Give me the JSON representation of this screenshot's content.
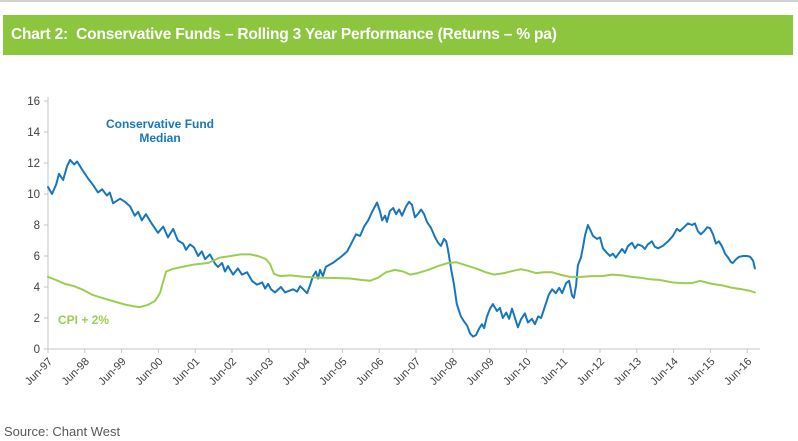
{
  "header": {
    "title": "Chart 2:  Conservative Funds – Rolling 3 Year Performance (Returns – % pa)",
    "bg_color": "#8CC63F",
    "text_color": "#FFFFFF"
  },
  "source": {
    "label": "Source: Chant West"
  },
  "chart_data": {
    "type": "line",
    "title": "Chart 2: Conservative Funds – Rolling 3 Year Performance (Returns – % pa)",
    "xlabel": "",
    "ylabel": "",
    "ylim": [
      0,
      16
    ],
    "y_ticks": [
      0,
      2,
      4,
      6,
      8,
      10,
      12,
      14,
      16
    ],
    "x_tick_labels": [
      "Jun-97",
      "Jun-98",
      "Jun-99",
      "Jun-00",
      "Jun-01",
      "Jun-02",
      "Jun-03",
      "Jun-04",
      "Jun-05",
      "Jun-06",
      "Jun-07",
      "Jun-08",
      "Jun-09",
      "Jun-10",
      "Jun-11",
      "Jun-12",
      "Jun-13",
      "Jun-14",
      "Jun-15",
      "Jun-16"
    ],
    "grid": false,
    "legend_position": "inline-annotations",
    "axis_color": "#C6C6C6",
    "tick_label_color": "#404040",
    "series": [
      {
        "name": "Conservative Fund Median",
        "color": "#1777BE",
        "x_unit": "years_after_Jun_1997",
        "points": [
          [
            0.0,
            10.45
          ],
          [
            0.11,
            10.0
          ],
          [
            0.22,
            10.6
          ],
          [
            0.3,
            11.3
          ],
          [
            0.41,
            10.9
          ],
          [
            0.52,
            11.8
          ],
          [
            0.6,
            12.2
          ],
          [
            0.71,
            11.9
          ],
          [
            0.79,
            12.1
          ],
          [
            0.92,
            11.6
          ],
          [
            1.09,
            11.0
          ],
          [
            1.22,
            10.6
          ],
          [
            1.36,
            10.1
          ],
          [
            1.47,
            10.3
          ],
          [
            1.6,
            9.9
          ],
          [
            1.68,
            10.1
          ],
          [
            1.77,
            9.4
          ],
          [
            1.96,
            9.7
          ],
          [
            2.09,
            9.5
          ],
          [
            2.23,
            9.2
          ],
          [
            2.36,
            8.6
          ],
          [
            2.45,
            8.85
          ],
          [
            2.55,
            8.3
          ],
          [
            2.66,
            8.7
          ],
          [
            2.83,
            8.05
          ],
          [
            2.99,
            7.5
          ],
          [
            3.13,
            7.9
          ],
          [
            3.26,
            7.2
          ],
          [
            3.4,
            7.75
          ],
          [
            3.53,
            7.0
          ],
          [
            3.67,
            6.8
          ],
          [
            3.75,
            6.4
          ],
          [
            3.86,
            6.75
          ],
          [
            3.97,
            6.55
          ],
          [
            4.08,
            6.0
          ],
          [
            4.18,
            6.3
          ],
          [
            4.27,
            5.8
          ],
          [
            4.4,
            6.1
          ],
          [
            4.54,
            5.5
          ],
          [
            4.62,
            5.3
          ],
          [
            4.73,
            5.55
          ],
          [
            4.81,
            5.0
          ],
          [
            4.89,
            5.35
          ],
          [
            5.03,
            4.8
          ],
          [
            5.16,
            5.2
          ],
          [
            5.27,
            4.8
          ],
          [
            5.41,
            4.95
          ],
          [
            5.54,
            4.4
          ],
          [
            5.68,
            4.15
          ],
          [
            5.82,
            4.3
          ],
          [
            5.9,
            3.9
          ],
          [
            5.98,
            4.2
          ],
          [
            6.06,
            3.85
          ],
          [
            6.17,
            3.65
          ],
          [
            6.33,
            4.0
          ],
          [
            6.44,
            3.65
          ],
          [
            6.66,
            3.85
          ],
          [
            6.77,
            3.7
          ],
          [
            6.85,
            4.05
          ],
          [
            7.04,
            3.6
          ],
          [
            7.12,
            4.1
          ],
          [
            7.2,
            4.7
          ],
          [
            7.28,
            5.0
          ],
          [
            7.34,
            4.55
          ],
          [
            7.39,
            5.1
          ],
          [
            7.47,
            4.7
          ],
          [
            7.55,
            5.3
          ],
          [
            7.77,
            5.6
          ],
          [
            7.99,
            6.0
          ],
          [
            8.13,
            6.3
          ],
          [
            8.26,
            6.9
          ],
          [
            8.37,
            7.4
          ],
          [
            8.48,
            7.3
          ],
          [
            8.59,
            7.9
          ],
          [
            8.7,
            8.3
          ],
          [
            8.8,
            8.8
          ],
          [
            8.94,
            9.45
          ],
          [
            9.02,
            8.9
          ],
          [
            9.08,
            8.3
          ],
          [
            9.16,
            8.6
          ],
          [
            9.21,
            8.2
          ],
          [
            9.29,
            8.9
          ],
          [
            9.38,
            9.1
          ],
          [
            9.46,
            8.7
          ],
          [
            9.54,
            9.0
          ],
          [
            9.62,
            8.6
          ],
          [
            9.73,
            9.2
          ],
          [
            9.81,
            9.5
          ],
          [
            9.89,
            9.3
          ],
          [
            9.97,
            8.5
          ],
          [
            10.05,
            8.7
          ],
          [
            10.14,
            9.0
          ],
          [
            10.22,
            8.7
          ],
          [
            10.3,
            8.2
          ],
          [
            10.41,
            7.8
          ],
          [
            10.52,
            7.2
          ],
          [
            10.6,
            6.85
          ],
          [
            10.68,
            6.65
          ],
          [
            10.76,
            7.1
          ],
          [
            10.82,
            6.95
          ],
          [
            10.87,
            6.4
          ],
          [
            10.95,
            5.2
          ],
          [
            11.03,
            4.2
          ],
          [
            11.11,
            2.9
          ],
          [
            11.22,
            2.1
          ],
          [
            11.3,
            1.8
          ],
          [
            11.39,
            1.5
          ],
          [
            11.47,
            1.0
          ],
          [
            11.55,
            0.8
          ],
          [
            11.63,
            0.9
          ],
          [
            11.71,
            1.3
          ],
          [
            11.79,
            1.6
          ],
          [
            11.85,
            1.35
          ],
          [
            11.93,
            2.1
          ],
          [
            12.01,
            2.6
          ],
          [
            12.09,
            2.9
          ],
          [
            12.2,
            2.45
          ],
          [
            12.28,
            2.65
          ],
          [
            12.36,
            2.0
          ],
          [
            12.45,
            2.35
          ],
          [
            12.53,
            1.95
          ],
          [
            12.61,
            2.6
          ],
          [
            12.69,
            2.0
          ],
          [
            12.77,
            1.4
          ],
          [
            12.85,
            1.9
          ],
          [
            12.96,
            2.3
          ],
          [
            13.04,
            1.7
          ],
          [
            13.15,
            1.95
          ],
          [
            13.23,
            1.6
          ],
          [
            13.32,
            2.1
          ],
          [
            13.4,
            2.0
          ],
          [
            13.51,
            2.8
          ],
          [
            13.61,
            3.5
          ],
          [
            13.7,
            3.85
          ],
          [
            13.8,
            3.6
          ],
          [
            13.89,
            3.95
          ],
          [
            13.97,
            3.6
          ],
          [
            14.08,
            4.25
          ],
          [
            14.16,
            4.4
          ],
          [
            14.24,
            3.45
          ],
          [
            14.29,
            3.3
          ],
          [
            14.35,
            4.1
          ],
          [
            14.4,
            5.4
          ],
          [
            14.48,
            5.9
          ],
          [
            14.54,
            6.6
          ],
          [
            14.59,
            7.3
          ],
          [
            14.67,
            8.0
          ],
          [
            14.73,
            7.7
          ],
          [
            14.81,
            7.3
          ],
          [
            14.92,
            7.1
          ],
          [
            15.0,
            7.2
          ],
          [
            15.08,
            6.5
          ],
          [
            15.19,
            6.2
          ],
          [
            15.27,
            6.0
          ],
          [
            15.35,
            6.15
          ],
          [
            15.43,
            5.9
          ],
          [
            15.52,
            6.2
          ],
          [
            15.6,
            6.45
          ],
          [
            15.68,
            6.2
          ],
          [
            15.76,
            6.65
          ],
          [
            15.87,
            6.85
          ],
          [
            15.95,
            6.5
          ],
          [
            16.03,
            6.75
          ],
          [
            16.14,
            6.65
          ],
          [
            16.22,
            6.45
          ],
          [
            16.3,
            6.75
          ],
          [
            16.41,
            6.95
          ],
          [
            16.49,
            6.6
          ],
          [
            16.58,
            6.5
          ],
          [
            16.71,
            6.65
          ],
          [
            16.85,
            6.95
          ],
          [
            16.98,
            7.3
          ],
          [
            17.09,
            7.75
          ],
          [
            17.17,
            7.6
          ],
          [
            17.28,
            7.85
          ],
          [
            17.39,
            8.1
          ],
          [
            17.5,
            8.0
          ],
          [
            17.58,
            8.1
          ],
          [
            17.66,
            7.6
          ],
          [
            17.74,
            7.4
          ],
          [
            17.83,
            7.6
          ],
          [
            17.91,
            7.85
          ],
          [
            17.99,
            7.8
          ],
          [
            18.07,
            7.4
          ],
          [
            18.15,
            6.8
          ],
          [
            18.23,
            6.95
          ],
          [
            18.32,
            6.6
          ],
          [
            18.4,
            6.15
          ],
          [
            18.48,
            5.9
          ],
          [
            18.56,
            5.6
          ],
          [
            18.61,
            5.55
          ],
          [
            18.7,
            5.8
          ],
          [
            18.78,
            5.95
          ],
          [
            18.89,
            6.0
          ],
          [
            19.0,
            6.0
          ],
          [
            19.08,
            5.95
          ],
          [
            19.16,
            5.7
          ],
          [
            19.21,
            5.2
          ]
        ]
      },
      {
        "name": "CPI + 2%",
        "color": "#9BCE4E",
        "x_unit": "years_after_Jun_1997",
        "points": [
          [
            0.0,
            4.65
          ],
          [
            0.22,
            4.45
          ],
          [
            0.46,
            4.2
          ],
          [
            0.71,
            4.05
          ],
          [
            0.92,
            3.85
          ],
          [
            1.2,
            3.5
          ],
          [
            1.47,
            3.3
          ],
          [
            1.68,
            3.15
          ],
          [
            1.9,
            3.0
          ],
          [
            2.12,
            2.85
          ],
          [
            2.34,
            2.75
          ],
          [
            2.5,
            2.7
          ],
          [
            2.72,
            2.85
          ],
          [
            2.91,
            3.1
          ],
          [
            3.04,
            3.6
          ],
          [
            3.21,
            5.0
          ],
          [
            3.37,
            5.15
          ],
          [
            3.64,
            5.3
          ],
          [
            3.97,
            5.45
          ],
          [
            4.35,
            5.55
          ],
          [
            4.67,
            5.9
          ],
          [
            4.97,
            6.0
          ],
          [
            5.22,
            6.1
          ],
          [
            5.49,
            6.1
          ],
          [
            5.71,
            6.0
          ],
          [
            5.92,
            5.8
          ],
          [
            6.03,
            5.5
          ],
          [
            6.14,
            4.85
          ],
          [
            6.3,
            4.7
          ],
          [
            6.58,
            4.75
          ],
          [
            6.98,
            4.65
          ],
          [
            7.39,
            4.6
          ],
          [
            7.8,
            4.58
          ],
          [
            8.21,
            4.55
          ],
          [
            8.53,
            4.45
          ],
          [
            8.75,
            4.4
          ],
          [
            8.97,
            4.6
          ],
          [
            9.18,
            4.95
          ],
          [
            9.43,
            5.1
          ],
          [
            9.65,
            5.0
          ],
          [
            9.84,
            4.8
          ],
          [
            10.05,
            4.9
          ],
          [
            10.33,
            5.1
          ],
          [
            10.6,
            5.35
          ],
          [
            10.87,
            5.55
          ],
          [
            11.09,
            5.6
          ],
          [
            11.36,
            5.4
          ],
          [
            11.63,
            5.2
          ],
          [
            11.9,
            4.95
          ],
          [
            12.12,
            4.8
          ],
          [
            12.39,
            4.9
          ],
          [
            12.66,
            5.05
          ],
          [
            12.85,
            5.15
          ],
          [
            13.04,
            5.05
          ],
          [
            13.26,
            4.9
          ],
          [
            13.48,
            4.95
          ],
          [
            13.7,
            4.95
          ],
          [
            13.91,
            4.8
          ],
          [
            14.18,
            4.65
          ],
          [
            14.46,
            4.65
          ],
          [
            14.78,
            4.7
          ],
          [
            15.05,
            4.7
          ],
          [
            15.33,
            4.8
          ],
          [
            15.6,
            4.75
          ],
          [
            15.87,
            4.65
          ],
          [
            16.09,
            4.6
          ],
          [
            16.36,
            4.5
          ],
          [
            16.63,
            4.45
          ],
          [
            16.96,
            4.3
          ],
          [
            17.23,
            4.25
          ],
          [
            17.5,
            4.25
          ],
          [
            17.72,
            4.4
          ],
          [
            17.88,
            4.3
          ],
          [
            18.04,
            4.2
          ],
          [
            18.32,
            4.1
          ],
          [
            18.59,
            3.95
          ],
          [
            18.86,
            3.85
          ],
          [
            19.08,
            3.75
          ],
          [
            19.21,
            3.65
          ]
        ]
      }
    ],
    "annotations": [
      {
        "text": "Conservative Fund Median",
        "color": "#1777BE"
      },
      {
        "text": "CPI + 2%",
        "color": "#9BCE4E"
      }
    ]
  }
}
